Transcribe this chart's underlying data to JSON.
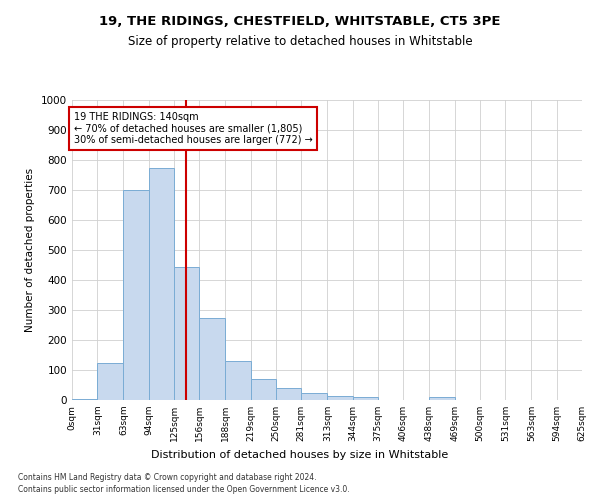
{
  "title1": "19, THE RIDINGS, CHESTFIELD, WHITSTABLE, CT5 3PE",
  "title2": "Size of property relative to detached houses in Whitstable",
  "xlabel": "Distribution of detached houses by size in Whitstable",
  "ylabel": "Number of detached properties",
  "bin_edges": [
    0,
    31,
    63,
    94,
    125,
    156,
    188,
    219,
    250,
    281,
    313,
    344,
    375,
    406,
    438,
    469,
    500,
    531,
    563,
    594,
    625
  ],
  "bar_heights": [
    5,
    125,
    700,
    775,
    445,
    275,
    130,
    70,
    40,
    25,
    15,
    10,
    0,
    0,
    10,
    0,
    0,
    0,
    0,
    0
  ],
  "bar_color": "#c8d9ee",
  "bar_edge_color": "#7aacd4",
  "vline_x": 140,
  "vline_color": "#cc0000",
  "annotation_box_color": "#cc0000",
  "annotation_line1": "19 THE RIDINGS: 140sqm",
  "annotation_line2": "← 70% of detached houses are smaller (1,805)",
  "annotation_line3": "30% of semi-detached houses are larger (772) →",
  "ylim": [
    0,
    1000
  ],
  "yticks": [
    0,
    100,
    200,
    300,
    400,
    500,
    600,
    700,
    800,
    900,
    1000
  ],
  "tick_labels": [
    "0sqm",
    "31sqm",
    "63sqm",
    "94sqm",
    "125sqm",
    "156sqm",
    "188sqm",
    "219sqm",
    "250sqm",
    "281sqm",
    "313sqm",
    "344sqm",
    "375sqm",
    "406sqm",
    "438sqm",
    "469sqm",
    "500sqm",
    "531sqm",
    "563sqm",
    "594sqm",
    "625sqm"
  ],
  "footnote1": "Contains HM Land Registry data © Crown copyright and database right 2024.",
  "footnote2": "Contains public sector information licensed under the Open Government Licence v3.0.",
  "grid_color": "#d0d0d0",
  "background_color": "#ffffff"
}
